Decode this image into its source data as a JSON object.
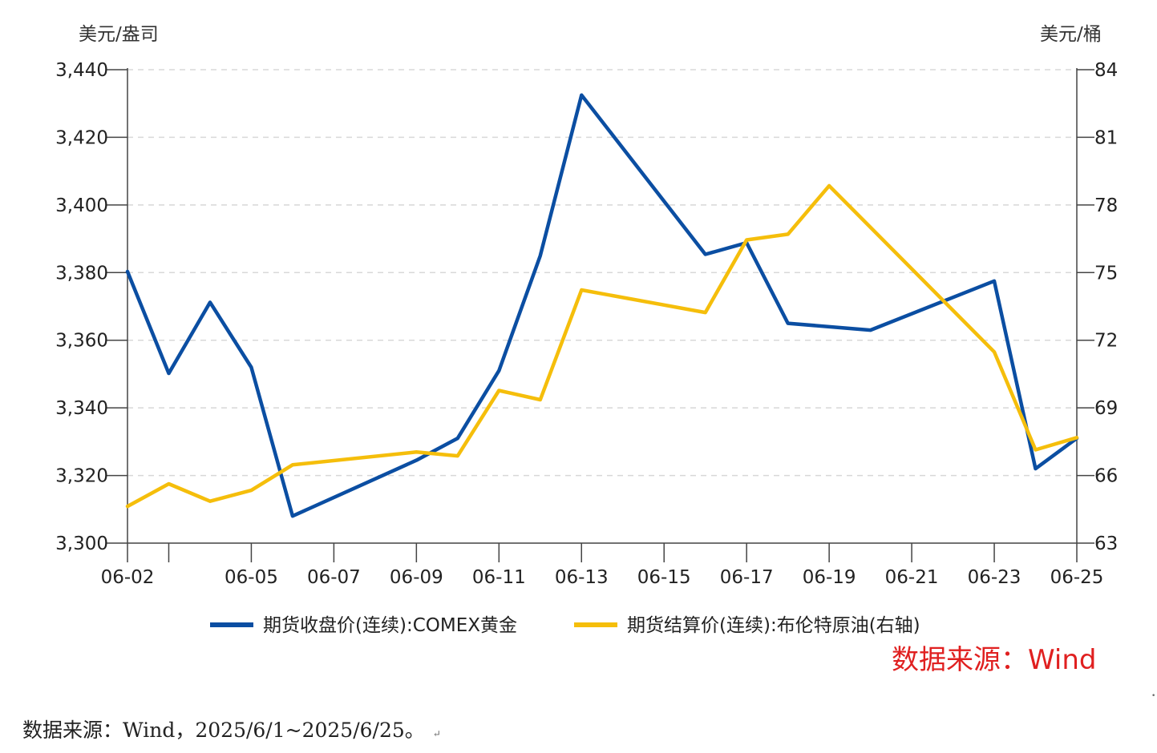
{
  "chart_data": {
    "type": "line",
    "title": "",
    "left_unit": "美元/盎司",
    "right_unit": "美元/桶",
    "y_left": {
      "min": 3300,
      "max": 3440,
      "ticks": [
        3300,
        3320,
        3340,
        3360,
        3380,
        3400,
        3420,
        3440
      ],
      "tick_labels": [
        "3,300",
        "3,320",
        "3,340",
        "3,360",
        "3,380",
        "3,400",
        "3,420",
        "3,440"
      ]
    },
    "y_right": {
      "min": 63,
      "max": 84,
      "ticks": [
        63,
        66,
        69,
        72,
        75,
        78,
        81,
        84
      ],
      "tick_labels": [
        "63",
        "66",
        "69",
        "72",
        "75",
        "78",
        "81",
        "84"
      ]
    },
    "x_range": [
      "2025-06-02",
      "2025-06-25"
    ],
    "x_tick_labels": [
      {
        "date": "2025-06-02",
        "label": "06-02"
      },
      {
        "date": "2025-06-03",
        "label": ""
      },
      {
        "date": "2025-06-05",
        "label": "06-05"
      },
      {
        "date": "2025-06-07",
        "label": "06-07"
      },
      {
        "date": "2025-06-09",
        "label": "06-09"
      },
      {
        "date": "2025-06-11",
        "label": "06-11"
      },
      {
        "date": "2025-06-13",
        "label": "06-13"
      },
      {
        "date": "2025-06-15",
        "label": "06-15"
      },
      {
        "date": "2025-06-17",
        "label": "06-17"
      },
      {
        "date": "2025-06-19",
        "label": "06-19"
      },
      {
        "date": "2025-06-21",
        "label": "06-21"
      },
      {
        "date": "2025-06-23",
        "label": "06-23"
      },
      {
        "date": "2025-06-25",
        "label": "06-25"
      }
    ],
    "grid": "horizontal dashed",
    "legend_position": "bottom",
    "series": [
      {
        "name": "期货收盘价(连续):COMEX黄金",
        "axis": "left",
        "color": "#0b4ea2",
        "points": [
          {
            "x": "2025-06-02",
            "y": 3380.3
          },
          {
            "x": "2025-06-03",
            "y": 3350.2
          },
          {
            "x": "2025-06-04",
            "y": 3371.2
          },
          {
            "x": "2025-06-05",
            "y": 3352.0
          },
          {
            "x": "2025-06-06",
            "y": 3308.0
          },
          {
            "x": "2025-06-09",
            "y": 3324.5
          },
          {
            "x": "2025-06-10",
            "y": 3331.0
          },
          {
            "x": "2025-06-11",
            "y": 3351.0
          },
          {
            "x": "2025-06-12",
            "y": 3385.0
          },
          {
            "x": "2025-06-13",
            "y": 3432.5
          },
          {
            "x": "2025-06-16",
            "y": 3385.4
          },
          {
            "x": "2025-06-17",
            "y": 3388.8
          },
          {
            "x": "2025-06-18",
            "y": 3365.0
          },
          {
            "x": "2025-06-20",
            "y": 3363.0
          },
          {
            "x": "2025-06-23",
            "y": 3377.5
          },
          {
            "x": "2025-06-24",
            "y": 3322.0
          },
          {
            "x": "2025-06-25",
            "y": 3331.0
          }
        ]
      },
      {
        "name": "期货结算价(连续):布伦特原油(右轴)",
        "axis": "right",
        "color": "#f5be0b",
        "points": [
          {
            "x": "2025-06-02",
            "y": 64.63
          },
          {
            "x": "2025-06-03",
            "y": 65.63
          },
          {
            "x": "2025-06-04",
            "y": 64.86
          },
          {
            "x": "2025-06-05",
            "y": 65.34
          },
          {
            "x": "2025-06-06",
            "y": 66.47
          },
          {
            "x": "2025-06-09",
            "y": 67.04
          },
          {
            "x": "2025-06-10",
            "y": 66.87
          },
          {
            "x": "2025-06-11",
            "y": 69.77
          },
          {
            "x": "2025-06-12",
            "y": 69.36
          },
          {
            "x": "2025-06-13",
            "y": 74.23
          },
          {
            "x": "2025-06-16",
            "y": 73.23
          },
          {
            "x": "2025-06-17",
            "y": 76.45
          },
          {
            "x": "2025-06-18",
            "y": 76.7
          },
          {
            "x": "2025-06-19",
            "y": 78.85
          },
          {
            "x": "2025-06-23",
            "y": 71.48
          },
          {
            "x": "2025-06-24",
            "y": 67.14
          },
          {
            "x": "2025-06-25",
            "y": 67.68
          }
        ]
      }
    ],
    "annotation": "数据来源：Wind"
  },
  "footnote": {
    "text": "数据来源：Wind，2025/6/1~2025/6/25。",
    "return_mark": "↵",
    "corner_mark": "•"
  }
}
